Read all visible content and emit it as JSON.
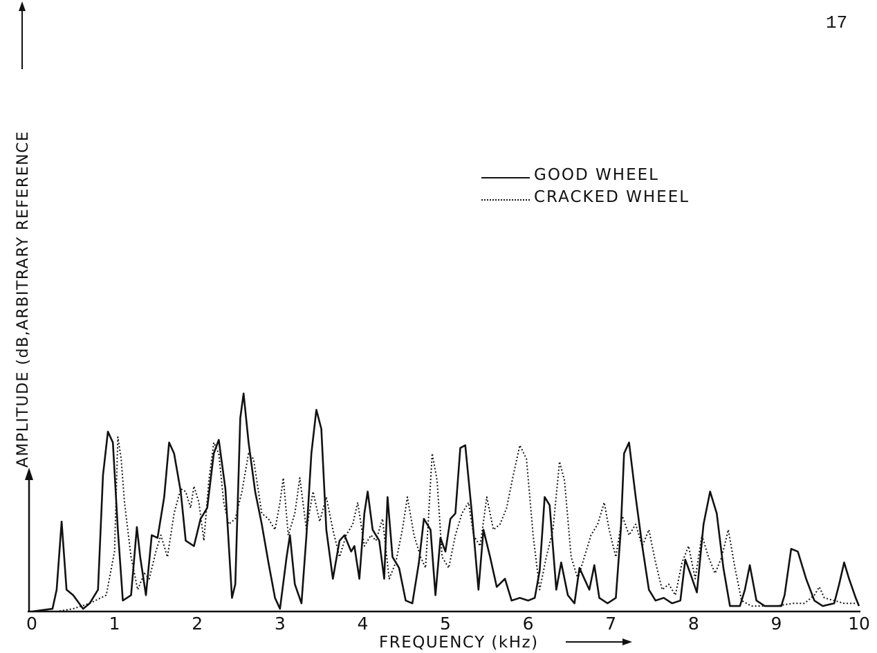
{
  "page_number": "17",
  "colors": {
    "ink": "#111111",
    "background": "#ffffff"
  },
  "chart_data": {
    "type": "line",
    "title": "",
    "xlabel": "FREQUENCY (kHz)",
    "ylabel": "AMPLITUDE (dB,ARBITRARY REFERENCE",
    "xlim": [
      0,
      10
    ],
    "ylim": [
      0,
      100
    ],
    "x_ticks": [
      "0",
      "1",
      "2",
      "3",
      "4",
      "5",
      "6",
      "7",
      "8",
      "9",
      "10"
    ],
    "y_ticks": [],
    "grid": false,
    "legend_position": "top-right",
    "series": [
      {
        "name": "GOOD WHEEL",
        "style": "solid",
        "points": [
          [
            0.0,
            0
          ],
          [
            0.25,
            1
          ],
          [
            0.3,
            8
          ],
          [
            0.36,
            33
          ],
          [
            0.42,
            8
          ],
          [
            0.5,
            6
          ],
          [
            0.62,
            1
          ],
          [
            0.7,
            3
          ],
          [
            0.8,
            8
          ],
          [
            0.86,
            50
          ],
          [
            0.92,
            66
          ],
          [
            0.98,
            62
          ],
          [
            1.04,
            30
          ],
          [
            1.1,
            4
          ],
          [
            1.2,
            6
          ],
          [
            1.27,
            31
          ],
          [
            1.31,
            20
          ],
          [
            1.38,
            6
          ],
          [
            1.45,
            28
          ],
          [
            1.52,
            27
          ],
          [
            1.6,
            42
          ],
          [
            1.66,
            62
          ],
          [
            1.72,
            58
          ],
          [
            1.8,
            44
          ],
          [
            1.86,
            26
          ],
          [
            1.96,
            24
          ],
          [
            2.04,
            34
          ],
          [
            2.12,
            38
          ],
          [
            2.2,
            58
          ],
          [
            2.26,
            63
          ],
          [
            2.34,
            45
          ],
          [
            2.42,
            5
          ],
          [
            2.46,
            10
          ],
          [
            2.52,
            71
          ],
          [
            2.56,
            80
          ],
          [
            2.62,
            62
          ],
          [
            2.7,
            44
          ],
          [
            2.78,
            32
          ],
          [
            2.86,
            18
          ],
          [
            2.94,
            5
          ],
          [
            3.0,
            1
          ],
          [
            3.08,
            20
          ],
          [
            3.12,
            28
          ],
          [
            3.18,
            10
          ],
          [
            3.26,
            3
          ],
          [
            3.32,
            28
          ],
          [
            3.38,
            58
          ],
          [
            3.44,
            74
          ],
          [
            3.5,
            67
          ],
          [
            3.56,
            30
          ],
          [
            3.64,
            12
          ],
          [
            3.72,
            26
          ],
          [
            3.78,
            28
          ],
          [
            3.86,
            22
          ],
          [
            3.9,
            24
          ],
          [
            3.96,
            12
          ],
          [
            4.02,
            36
          ],
          [
            4.06,
            44
          ],
          [
            4.12,
            30
          ],
          [
            4.2,
            26
          ],
          [
            4.26,
            12
          ],
          [
            4.3,
            42
          ],
          [
            4.36,
            20
          ],
          [
            4.44,
            16
          ],
          [
            4.52,
            4
          ],
          [
            4.6,
            3
          ],
          [
            4.68,
            18
          ],
          [
            4.74,
            34
          ],
          [
            4.82,
            30
          ],
          [
            4.88,
            6
          ],
          [
            4.94,
            27
          ],
          [
            5.0,
            22
          ],
          [
            5.06,
            34
          ],
          [
            5.12,
            36
          ],
          [
            5.18,
            60
          ],
          [
            5.24,
            61
          ],
          [
            5.32,
            36
          ],
          [
            5.4,
            8
          ],
          [
            5.46,
            30
          ],
          [
            5.54,
            20
          ],
          [
            5.62,
            9
          ],
          [
            5.72,
            12
          ],
          [
            5.8,
            4
          ],
          [
            5.9,
            5
          ],
          [
            6.0,
            4
          ],
          [
            6.08,
            5
          ],
          [
            6.14,
            15
          ],
          [
            6.2,
            42
          ],
          [
            6.26,
            39
          ],
          [
            6.34,
            8
          ],
          [
            6.4,
            18
          ],
          [
            6.48,
            6
          ],
          [
            6.56,
            3
          ],
          [
            6.62,
            16
          ],
          [
            6.68,
            12
          ],
          [
            6.74,
            8
          ],
          [
            6.8,
            17
          ],
          [
            6.86,
            5
          ],
          [
            6.96,
            3
          ],
          [
            7.06,
            5
          ],
          [
            7.12,
            30
          ],
          [
            7.16,
            58
          ],
          [
            7.22,
            62
          ],
          [
            7.3,
            42
          ],
          [
            7.38,
            24
          ],
          [
            7.46,
            8
          ],
          [
            7.54,
            4
          ],
          [
            7.64,
            5
          ],
          [
            7.74,
            3
          ],
          [
            7.84,
            4
          ],
          [
            7.9,
            19
          ],
          [
            7.96,
            14
          ],
          [
            8.04,
            7
          ],
          [
            8.12,
            32
          ],
          [
            8.2,
            44
          ],
          [
            8.28,
            36
          ],
          [
            8.36,
            16
          ],
          [
            8.44,
            2
          ],
          [
            8.56,
            2
          ],
          [
            8.62,
            8
          ],
          [
            8.68,
            17
          ],
          [
            8.76,
            4
          ],
          [
            8.86,
            2
          ],
          [
            8.96,
            2
          ],
          [
            9.06,
            2
          ],
          [
            9.1,
            6
          ],
          [
            9.18,
            23
          ],
          [
            9.26,
            22
          ],
          [
            9.36,
            12
          ],
          [
            9.46,
            4
          ],
          [
            9.56,
            2
          ],
          [
            9.7,
            3
          ],
          [
            9.76,
            10
          ],
          [
            9.82,
            18
          ],
          [
            9.88,
            12
          ],
          [
            9.96,
            5
          ],
          [
            10.0,
            2
          ]
        ]
      },
      {
        "name": "CRACKED WHEEL",
        "style": "dotted",
        "points": [
          [
            0.0,
            0
          ],
          [
            0.3,
            0
          ],
          [
            0.5,
            1
          ],
          [
            0.7,
            3
          ],
          [
            0.9,
            6
          ],
          [
            1.0,
            22
          ],
          [
            1.04,
            64
          ],
          [
            1.08,
            56
          ],
          [
            1.12,
            40
          ],
          [
            1.2,
            20
          ],
          [
            1.28,
            8
          ],
          [
            1.36,
            14
          ],
          [
            1.42,
            12
          ],
          [
            1.5,
            22
          ],
          [
            1.56,
            28
          ],
          [
            1.64,
            20
          ],
          [
            1.72,
            36
          ],
          [
            1.8,
            45
          ],
          [
            1.86,
            44
          ],
          [
            1.92,
            38
          ],
          [
            1.96,
            46
          ],
          [
            2.02,
            40
          ],
          [
            2.08,
            26
          ],
          [
            2.14,
            48
          ],
          [
            2.2,
            62
          ],
          [
            2.26,
            58
          ],
          [
            2.32,
            40
          ],
          [
            2.38,
            32
          ],
          [
            2.46,
            34
          ],
          [
            2.54,
            44
          ],
          [
            2.62,
            58
          ],
          [
            2.68,
            56
          ],
          [
            2.72,
            48
          ],
          [
            2.78,
            36
          ],
          [
            2.86,
            34
          ],
          [
            2.94,
            30
          ],
          [
            3.0,
            40
          ],
          [
            3.04,
            49
          ],
          [
            3.1,
            28
          ],
          [
            3.18,
            36
          ],
          [
            3.24,
            49
          ],
          [
            3.32,
            30
          ],
          [
            3.4,
            44
          ],
          [
            3.48,
            33
          ],
          [
            3.56,
            42
          ],
          [
            3.64,
            30
          ],
          [
            3.72,
            20
          ],
          [
            3.8,
            28
          ],
          [
            3.88,
            32
          ],
          [
            3.94,
            40
          ],
          [
            4.02,
            24
          ],
          [
            4.1,
            28
          ],
          [
            4.16,
            26
          ],
          [
            4.24,
            34
          ],
          [
            4.32,
            12
          ],
          [
            4.4,
            18
          ],
          [
            4.48,
            30
          ],
          [
            4.54,
            42
          ],
          [
            4.62,
            28
          ],
          [
            4.7,
            20
          ],
          [
            4.76,
            16
          ],
          [
            4.84,
            58
          ],
          [
            4.9,
            48
          ],
          [
            4.96,
            20
          ],
          [
            5.04,
            16
          ],
          [
            5.12,
            28
          ],
          [
            5.2,
            36
          ],
          [
            5.28,
            40
          ],
          [
            5.34,
            28
          ],
          [
            5.42,
            24
          ],
          [
            5.5,
            42
          ],
          [
            5.58,
            30
          ],
          [
            5.66,
            32
          ],
          [
            5.74,
            38
          ],
          [
            5.82,
            50
          ],
          [
            5.9,
            61
          ],
          [
            5.98,
            56
          ],
          [
            6.06,
            28
          ],
          [
            6.14,
            8
          ],
          [
            6.22,
            20
          ],
          [
            6.3,
            30
          ],
          [
            6.38,
            55
          ],
          [
            6.44,
            48
          ],
          [
            6.52,
            20
          ],
          [
            6.6,
            12
          ],
          [
            6.68,
            20
          ],
          [
            6.76,
            28
          ],
          [
            6.84,
            32
          ],
          [
            6.92,
            40
          ],
          [
            6.98,
            30
          ],
          [
            7.06,
            20
          ],
          [
            7.14,
            35
          ],
          [
            7.22,
            28
          ],
          [
            7.3,
            32
          ],
          [
            7.38,
            24
          ],
          [
            7.46,
            30
          ],
          [
            7.54,
            18
          ],
          [
            7.62,
            8
          ],
          [
            7.7,
            10
          ],
          [
            7.78,
            6
          ],
          [
            7.86,
            18
          ],
          [
            7.94,
            24
          ],
          [
            8.02,
            12
          ],
          [
            8.1,
            28
          ],
          [
            8.18,
            20
          ],
          [
            8.26,
            14
          ],
          [
            8.34,
            20
          ],
          [
            8.42,
            30
          ],
          [
            8.5,
            16
          ],
          [
            8.58,
            4
          ],
          [
            8.7,
            2
          ],
          [
            8.8,
            2
          ],
          [
            8.92,
            2
          ],
          [
            9.0,
            2
          ],
          [
            9.2,
            3
          ],
          [
            9.34,
            3
          ],
          [
            9.46,
            6
          ],
          [
            9.52,
            9
          ],
          [
            9.58,
            5
          ],
          [
            9.7,
            4
          ],
          [
            9.82,
            3
          ],
          [
            10.0,
            3
          ]
        ]
      }
    ]
  }
}
